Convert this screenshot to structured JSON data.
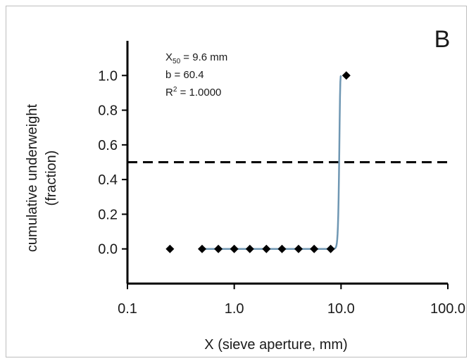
{
  "chart_data": {
    "type": "scatter",
    "panel_label": "B",
    "xlabel": "X (sieve aperture, mm)",
    "ylabel_line1": "cumulative underweight",
    "ylabel_line2": "(fraction)",
    "x_scale": "log",
    "xlim": [
      0.1,
      100.0
    ],
    "ylim": [
      -0.2,
      1.2
    ],
    "x_ticks": [
      0.1,
      1.0,
      10.0,
      100.0
    ],
    "x_tick_labels": [
      "0.1",
      "1.0",
      "10.0",
      "100.0"
    ],
    "y_ticks": [
      0.0,
      0.2,
      0.4,
      0.6,
      0.8,
      1.0
    ],
    "y_tick_labels": [
      "0.0",
      "0.2",
      "0.4",
      "0.6",
      "0.8",
      "1.0"
    ],
    "grid": false,
    "annotation": {
      "x50_sym": "X",
      "x50_sub": "50",
      "x50_text": " =  9.6 mm",
      "b_text": "b =   60.4",
      "r2_sym": "R",
      "r2_sup": "2",
      "r2_text": " =    1.0000"
    },
    "reference_line": {
      "y": 0.5,
      "style": "dashed"
    },
    "points": [
      {
        "x": 0.25,
        "y": 0.0
      },
      {
        "x": 0.5,
        "y": 0.0
      },
      {
        "x": 0.71,
        "y": 0.0
      },
      {
        "x": 1.0,
        "y": 0.0
      },
      {
        "x": 1.4,
        "y": 0.0
      },
      {
        "x": 2.0,
        "y": 0.0
      },
      {
        "x": 2.8,
        "y": 0.0
      },
      {
        "x": 4.0,
        "y": 0.0
      },
      {
        "x": 5.6,
        "y": 0.0
      },
      {
        "x": 8.0,
        "y": 0.0
      },
      {
        "x": 11.2,
        "y": 1.0
      }
    ],
    "fit_curve": {
      "model": "rosin-rammler",
      "x50": 9.6,
      "b": 60.4,
      "x_start": 0.5,
      "x_end": 10.0,
      "color": "#6f97b3"
    },
    "colors": {
      "points": "#000000",
      "axes": "#000000",
      "dashed_line": "#000000"
    }
  }
}
